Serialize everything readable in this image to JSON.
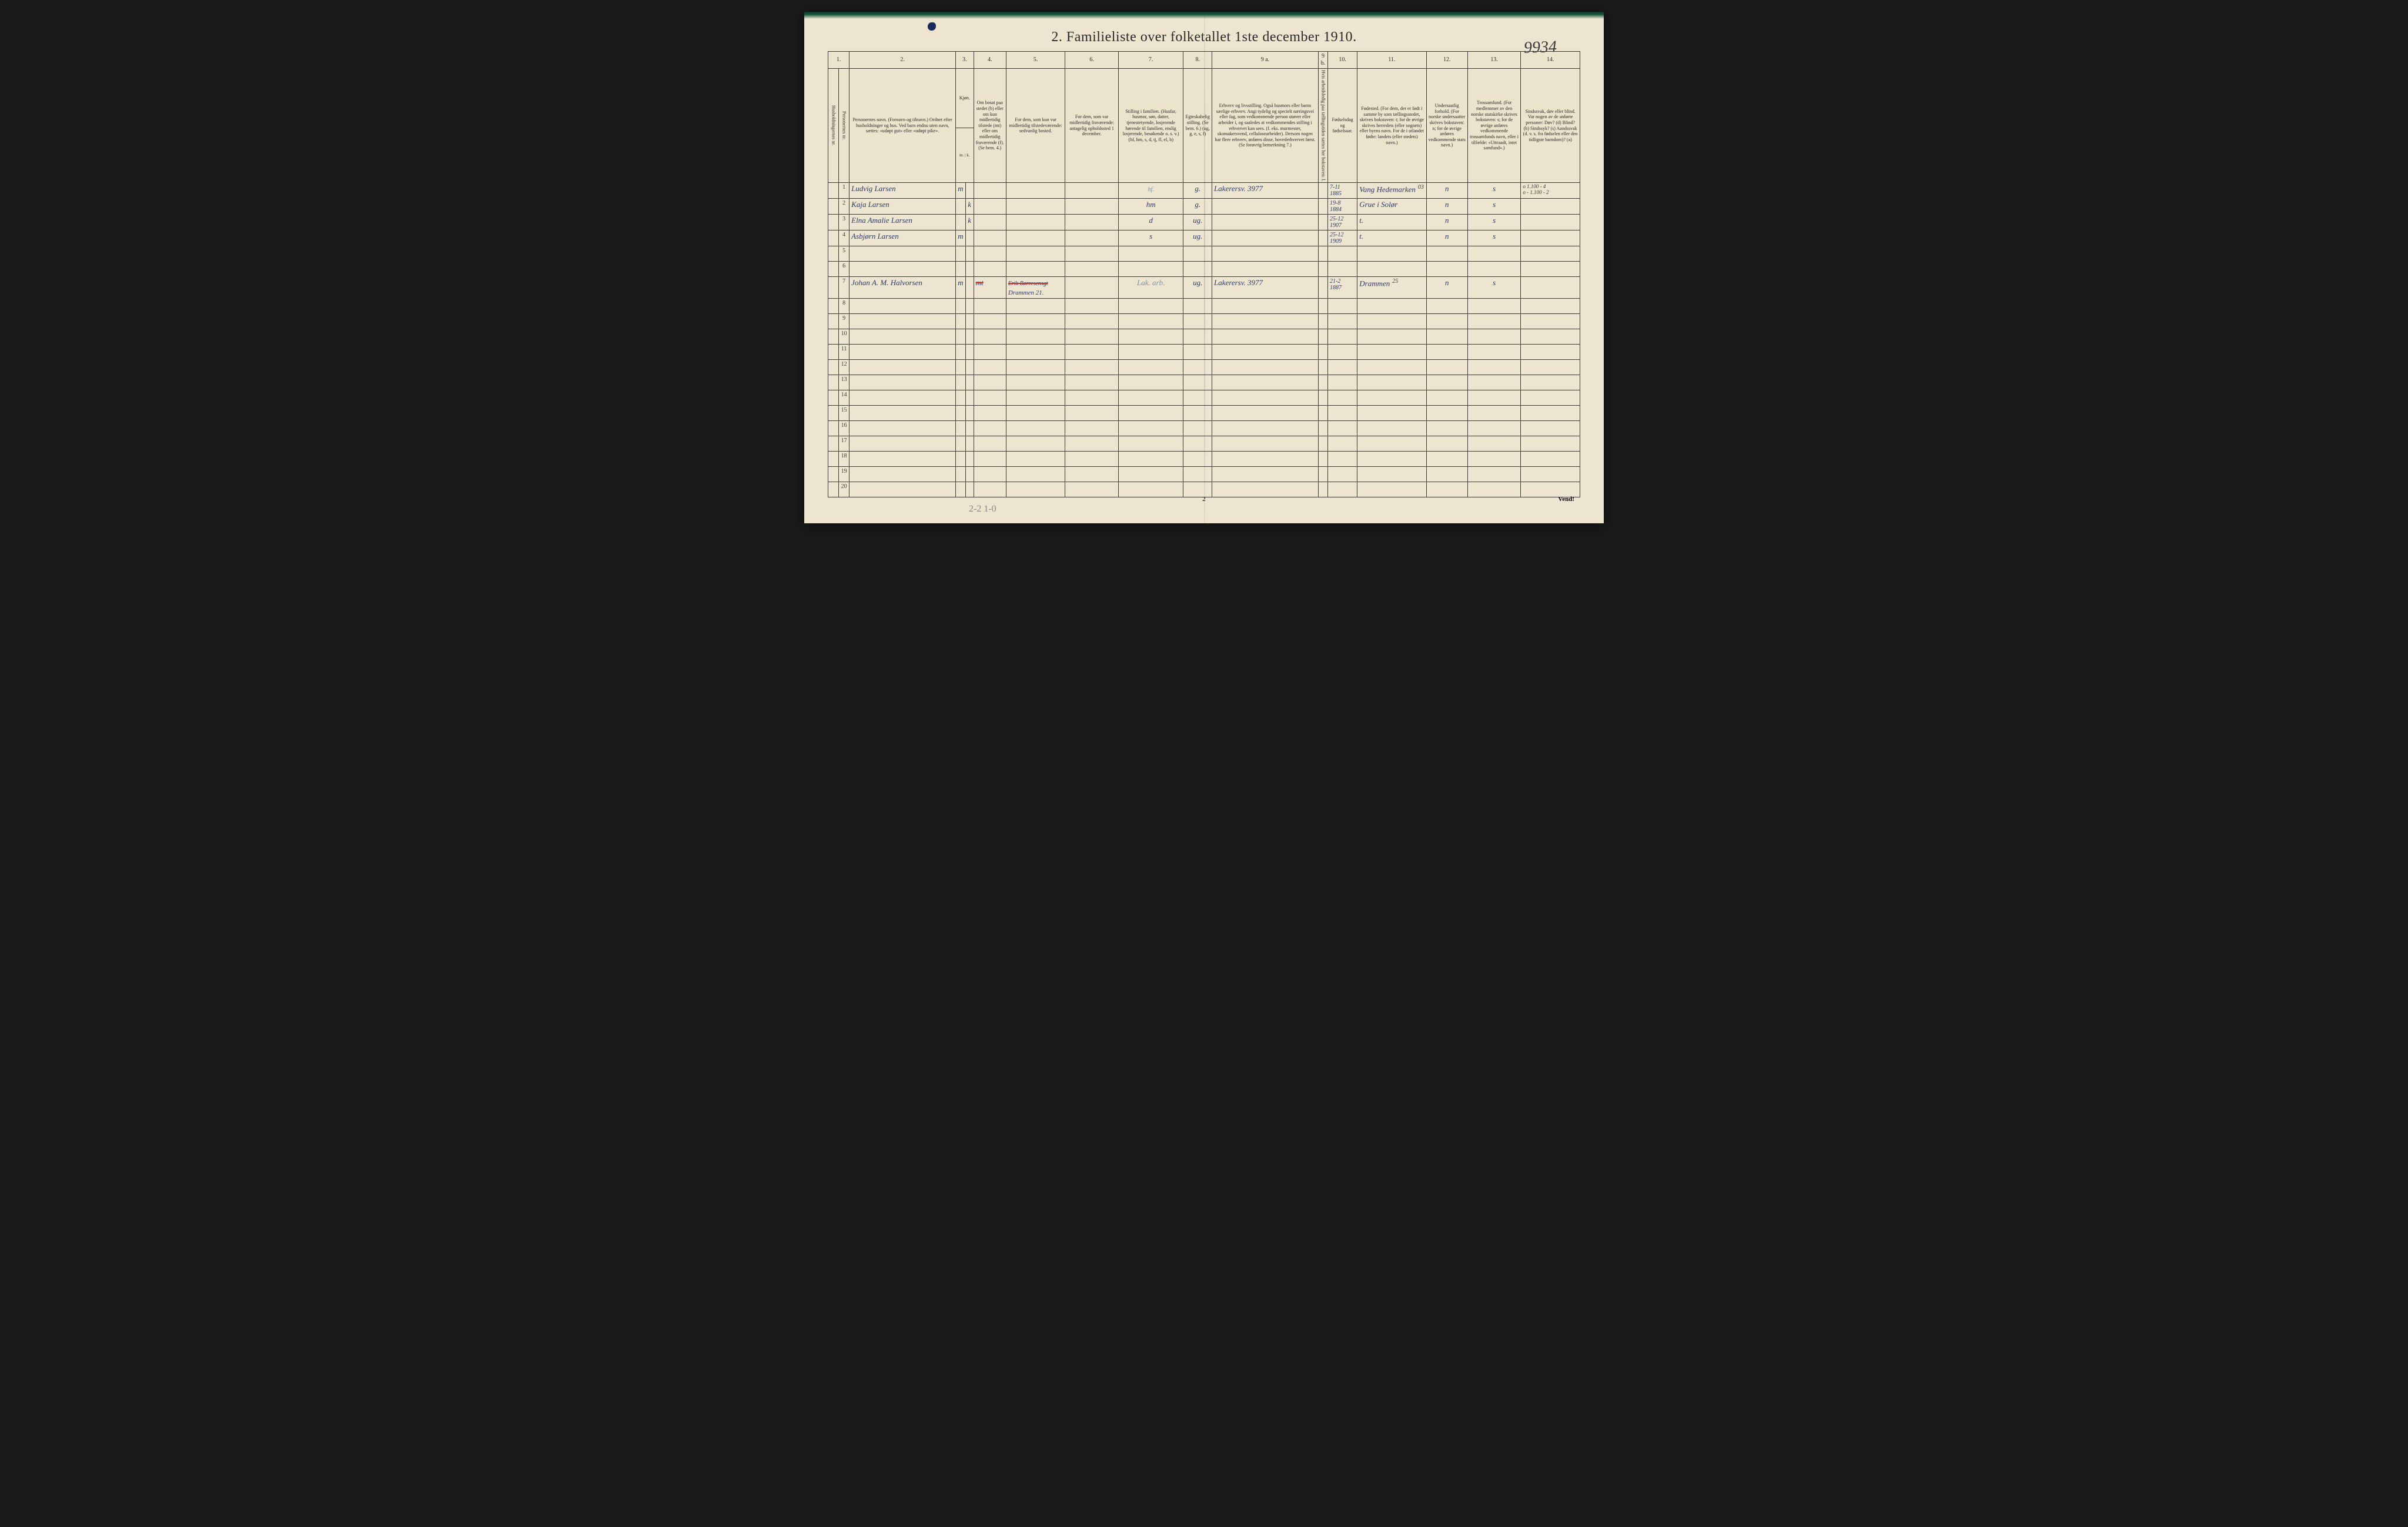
{
  "page_number_annotation": "9934",
  "title": "2.  Familieliste over folketallet 1ste december 1910.",
  "ink_blot_color": "#1a2a5a",
  "handwriting_color": "#2a3a6a",
  "paper_color": "#ede5d0",
  "border_color": "#3a3a3a",
  "strike_color": "#c0392b",
  "column_numbers": [
    "1.",
    "2.",
    "3.",
    "4.",
    "5.",
    "6.",
    "7.",
    "8.",
    "9 a.",
    "9 b.",
    "10.",
    "11.",
    "12.",
    "13.",
    "14."
  ],
  "headers": {
    "c1": "Husholdningernes nr.",
    "c1b": "Personernes nr.",
    "c2": "Personernes navn.\n(Fornavn og tilnavn.)\nOrdnet efter husholdninger og hus.\nVed barn endnu uten navn, sættes: «udøpt gut» eller «udøpt pike».",
    "c3": "Kjøn.",
    "c3sub": "Mænd. Kvinder.",
    "c3mk": "m. | k.",
    "c4": "Om bosat paa stedet (b) eller om kun midlertidig tilstede (mt) eller om midlertidig fraværende (f). (Se bem. 4.)",
    "c5": "For dem, som kun var midlertidig tilstedeværende:\nsedvanlig bosted.",
    "c6": "For dem, som var midlertidig fraværende:\nantagelig opholdssted 1 december.",
    "c7": "Stilling i familien.\n(Husfar, husmor, søn, datter, tjenestetyende, losjerende hørende til familien, enslig losjerende, besøkende o. s. v.)\n(hf, hm, s, d, tj, fl, el, b)",
    "c8": "Egteskabelig stilling.\n(Se bem. 6.)\n(ug, g, e, s, f)",
    "c9a": "Erhverv og livsstilling.\nOgså husmors eller barns særlige erhverv. Angi tydelig og specielt næringsvei eller fag, som vedkommende person utøver eller arbeider i, og saaledes at vedkommendes stilling i erhvervet kan sees. (f. eks. murmester, skomakersvend, cellulosearbeider). Dersom nogen har flere erhverv, anføres disse, hovederhvervet først.\n(Se forøvrig bemerkning 7.)",
    "c9b": "Hvis arbeidsledig paa tællingstiden sættes her bokstaven: l.",
    "c10": "Fødselsdag og fødselsaar.",
    "c11": "Fødested.\n(For dem, der er født i samme by som tællingsstedet, skrives bokstaven: t; for de øvrige skrives herredets (eller sognets) eller byens navn. For de i utlandet fødte: landets (eller stedets) navn.)",
    "c12": "Undersaatlig forhold.\n(For norske undersaatter skrives bokstaven: n; for de øvrige anføres vedkommende stats navn.)",
    "c13": "Trossamfund.\n(For medlemmer av den norske statskirke skrives bokstaven: s; for de øvrige anføres vedkommende trossamfunds navn, eller i tilfælde: «Uttraadt, intet samfund».)",
    "c14": "Sindssvak, døv eller blind.\nVar nogen av de anførte personer:\nDøv? (d)\nBlind? (b)\nSindssyk? (s)\nAandssvak (d. v. s. fra fødselen eller den tidligste barndom)? (a)"
  },
  "rows": [
    {
      "n": "1",
      "navn": "Ludvig Larsen",
      "mk": "m",
      "c4": "",
      "c5": "",
      "c6": "",
      "c7pre": "hf.",
      "c7": "",
      "c8": "g.",
      "c9a": "Lakerersv. 3977",
      "c10": "7-11 1885",
      "c11": "Vang Hedemarken",
      "c11sup": "03",
      "c12": "n",
      "c13": "s",
      "c14": "o 1.100 - 4\no - 1.100 - 2"
    },
    {
      "n": "2",
      "navn": "Kaja Larsen",
      "mk": "k",
      "c4": "",
      "c5": "",
      "c6": "",
      "c7": "hm",
      "c8": "g.",
      "c9a": "",
      "c10": "19-8 1884",
      "c11": "Grue i Solør",
      "c12": "n",
      "c13": "s",
      "c14": ""
    },
    {
      "n": "3",
      "navn": "Elna Amalie Larsen",
      "mk": "k",
      "c4": "",
      "c5": "",
      "c6": "",
      "c7": "d",
      "c8": "ug.",
      "c9a": "",
      "c10": "25-12 1907",
      "c11": "t.",
      "c12": "n",
      "c13": "s",
      "c14": ""
    },
    {
      "n": "4",
      "navn": "Asbjørn Larsen",
      "mk": "m",
      "c4": "",
      "c5": "",
      "c6": "",
      "c7": "s",
      "c8": "ug.",
      "c9a": "",
      "c10": "25-12 1909",
      "c11": "t.",
      "c12": "n",
      "c13": "s",
      "c14": ""
    },
    {
      "n": "5",
      "navn": "",
      "mk": "",
      "c4": "",
      "c5": "",
      "c6": "",
      "c7": "",
      "c8": "",
      "c9a": "",
      "c10": "",
      "c11": "",
      "c12": "",
      "c13": "",
      "c14": ""
    },
    {
      "n": "6",
      "navn": "",
      "mk": "",
      "c4": "",
      "c5": "",
      "c6": "",
      "c7": "",
      "c8": "",
      "c9a": "",
      "c10": "",
      "c11": "",
      "c12": "",
      "c13": "",
      "c14": ""
    },
    {
      "n": "7",
      "navn": "Johan A. M. Halvorsen",
      "mk": "m",
      "c4": "mt",
      "c4struck": true,
      "c5": "Erik Børresensgt",
      "c5struck": true,
      "c5line2": "Drammen 21.",
      "c6": "",
      "c7": "Lak. arb.",
      "c7faded": true,
      "c8": "ug.",
      "c9a": "Lakerersv. 3977",
      "c10": "21-2 1887",
      "c11": "Drammen",
      "c11sup": "25",
      "c12": "n",
      "c13": "s",
      "c14": ""
    },
    {
      "n": "8",
      "navn": "",
      "mk": "",
      "c4": "",
      "c5": "",
      "c6": "",
      "c7": "",
      "c8": "",
      "c9a": "",
      "c10": "",
      "c11": "",
      "c12": "",
      "c13": "",
      "c14": ""
    },
    {
      "n": "9",
      "navn": "",
      "mk": "",
      "c4": "",
      "c5": "",
      "c6": "",
      "c7": "",
      "c8": "",
      "c9a": "",
      "c10": "",
      "c11": "",
      "c12": "",
      "c13": "",
      "c14": ""
    },
    {
      "n": "10",
      "navn": "",
      "mk": "",
      "c4": "",
      "c5": "",
      "c6": "",
      "c7": "",
      "c8": "",
      "c9a": "",
      "c10": "",
      "c11": "",
      "c12": "",
      "c13": "",
      "c14": ""
    },
    {
      "n": "11",
      "navn": "",
      "mk": "",
      "c4": "",
      "c5": "",
      "c6": "",
      "c7": "",
      "c8": "",
      "c9a": "",
      "c10": "",
      "c11": "",
      "c12": "",
      "c13": "",
      "c14": ""
    },
    {
      "n": "12",
      "navn": "",
      "mk": "",
      "c4": "",
      "c5": "",
      "c6": "",
      "c7": "",
      "c8": "",
      "c9a": "",
      "c10": "",
      "c11": "",
      "c12": "",
      "c13": "",
      "c14": ""
    },
    {
      "n": "13",
      "navn": "",
      "mk": "",
      "c4": "",
      "c5": "",
      "c6": "",
      "c7": "",
      "c8": "",
      "c9a": "",
      "c10": "",
      "c11": "",
      "c12": "",
      "c13": "",
      "c14": ""
    },
    {
      "n": "14",
      "navn": "",
      "mk": "",
      "c4": "",
      "c5": "",
      "c6": "",
      "c7": "",
      "c8": "",
      "c9a": "",
      "c10": "",
      "c11": "",
      "c12": "",
      "c13": "",
      "c14": ""
    },
    {
      "n": "15",
      "navn": "",
      "mk": "",
      "c4": "",
      "c5": "",
      "c6": "",
      "c7": "",
      "c8": "",
      "c9a": "",
      "c10": "",
      "c11": "",
      "c12": "",
      "c13": "",
      "c14": ""
    },
    {
      "n": "16",
      "navn": "",
      "mk": "",
      "c4": "",
      "c5": "",
      "c6": "",
      "c7": "",
      "c8": "",
      "c9a": "",
      "c10": "",
      "c11": "",
      "c12": "",
      "c13": "",
      "c14": ""
    },
    {
      "n": "17",
      "navn": "",
      "mk": "",
      "c4": "",
      "c5": "",
      "c6": "",
      "c7": "",
      "c8": "",
      "c9a": "",
      "c10": "",
      "c11": "",
      "c12": "",
      "c13": "",
      "c14": ""
    },
    {
      "n": "18",
      "navn": "",
      "mk": "",
      "c4": "",
      "c5": "",
      "c6": "",
      "c7": "",
      "c8": "",
      "c9a": "",
      "c10": "",
      "c11": "",
      "c12": "",
      "c13": "",
      "c14": ""
    },
    {
      "n": "19",
      "navn": "",
      "mk": "",
      "c4": "",
      "c5": "",
      "c6": "",
      "c7": "",
      "c8": "",
      "c9a": "",
      "c10": "",
      "c11": "",
      "c12": "",
      "c13": "",
      "c14": ""
    },
    {
      "n": "20",
      "navn": "",
      "mk": "",
      "c4": "",
      "c5": "",
      "c6": "",
      "c7": "",
      "c8": "",
      "c9a": "",
      "c10": "",
      "c11": "",
      "c12": "",
      "c13": "",
      "c14": ""
    }
  ],
  "footer": {
    "page_num": "2",
    "vend": "Vend!",
    "pencil": "2-2  1-0"
  },
  "col_widths": {
    "c1": "16px",
    "c1b": "16px",
    "c2": "180px",
    "c3m": "14px",
    "c3k": "14px",
    "c4": "55px",
    "c5": "100px",
    "c6": "90px",
    "c7": "110px",
    "c8": "45px",
    "c9a": "180px",
    "c9b": "16px",
    "c10": "50px",
    "c11": "110px",
    "c12": "70px",
    "c13": "90px",
    "c14": "100px"
  }
}
